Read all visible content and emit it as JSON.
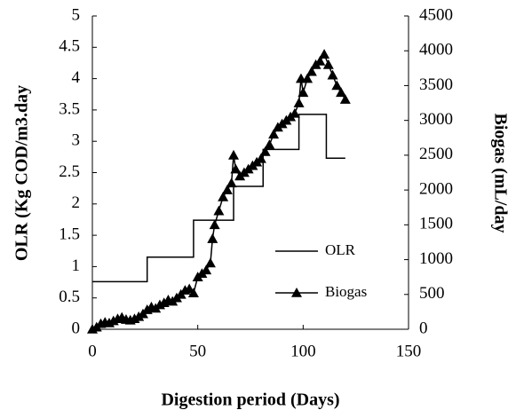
{
  "chart_data": {
    "type": "line",
    "xlabel": "Digestion period (Days)",
    "ylabel": "OLR (Kg COD/m3.day",
    "y2label": "Biogas (mL/day",
    "xlim": [
      0,
      150
    ],
    "xticks": [
      0,
      50,
      100,
      150
    ],
    "ylim": [
      0,
      5
    ],
    "yticks": [
      0,
      0.5,
      1,
      1.5,
      2,
      2.5,
      3,
      3.5,
      4,
      4.5,
      5
    ],
    "y2lim": [
      0,
      4500
    ],
    "y2ticks": [
      0,
      500,
      1000,
      1500,
      2000,
      2500,
      3000,
      3500,
      4000,
      4500
    ],
    "legend": "right",
    "series": [
      {
        "name": "OLR",
        "color": "#000000",
        "marker": "none",
        "x": [
          0,
          26,
          26,
          48,
          48,
          67,
          67,
          81,
          81,
          98,
          98,
          111,
          111,
          120
        ],
        "values": [
          0.76,
          0.76,
          1.15,
          1.15,
          1.74,
          1.74,
          2.28,
          2.28,
          2.87,
          2.87,
          3.43,
          3.43,
          2.73,
          2.73
        ]
      },
      {
        "name": "Biogas",
        "color": "#000000",
        "marker": "triangle",
        "axis": "y2",
        "x": [
          0,
          2,
          4,
          6,
          8,
          10,
          12,
          14,
          16,
          18,
          20,
          22,
          24,
          26,
          28,
          30,
          32,
          34,
          36,
          38,
          40,
          42,
          44,
          46,
          48,
          50,
          52,
          54,
          56,
          57,
          58,
          60,
          62,
          64,
          66,
          67,
          68,
          70,
          72,
          74,
          76,
          78,
          80,
          82,
          84,
          86,
          88,
          90,
          92,
          94,
          96,
          98,
          99,
          100,
          102,
          104,
          106,
          108,
          110,
          112,
          114,
          116,
          118,
          120
        ],
        "values": [
          0,
          30,
          80,
          100,
          90,
          120,
          150,
          170,
          140,
          130,
          150,
          180,
          220,
          280,
          320,
          300,
          350,
          380,
          420,
          400,
          450,
          500,
          560,
          580,
          520,
          750,
          800,
          850,
          950,
          1300,
          1500,
          1700,
          1900,
          2000,
          2100,
          2500,
          2300,
          2200,
          2250,
          2300,
          2350,
          2400,
          2450,
          2550,
          2650,
          2800,
          2900,
          2950,
          3000,
          3050,
          3100,
          3250,
          3600,
          3400,
          3600,
          3700,
          3800,
          3850,
          3950,
          3800,
          3650,
          3500,
          3400,
          3300
        ]
      }
    ]
  }
}
